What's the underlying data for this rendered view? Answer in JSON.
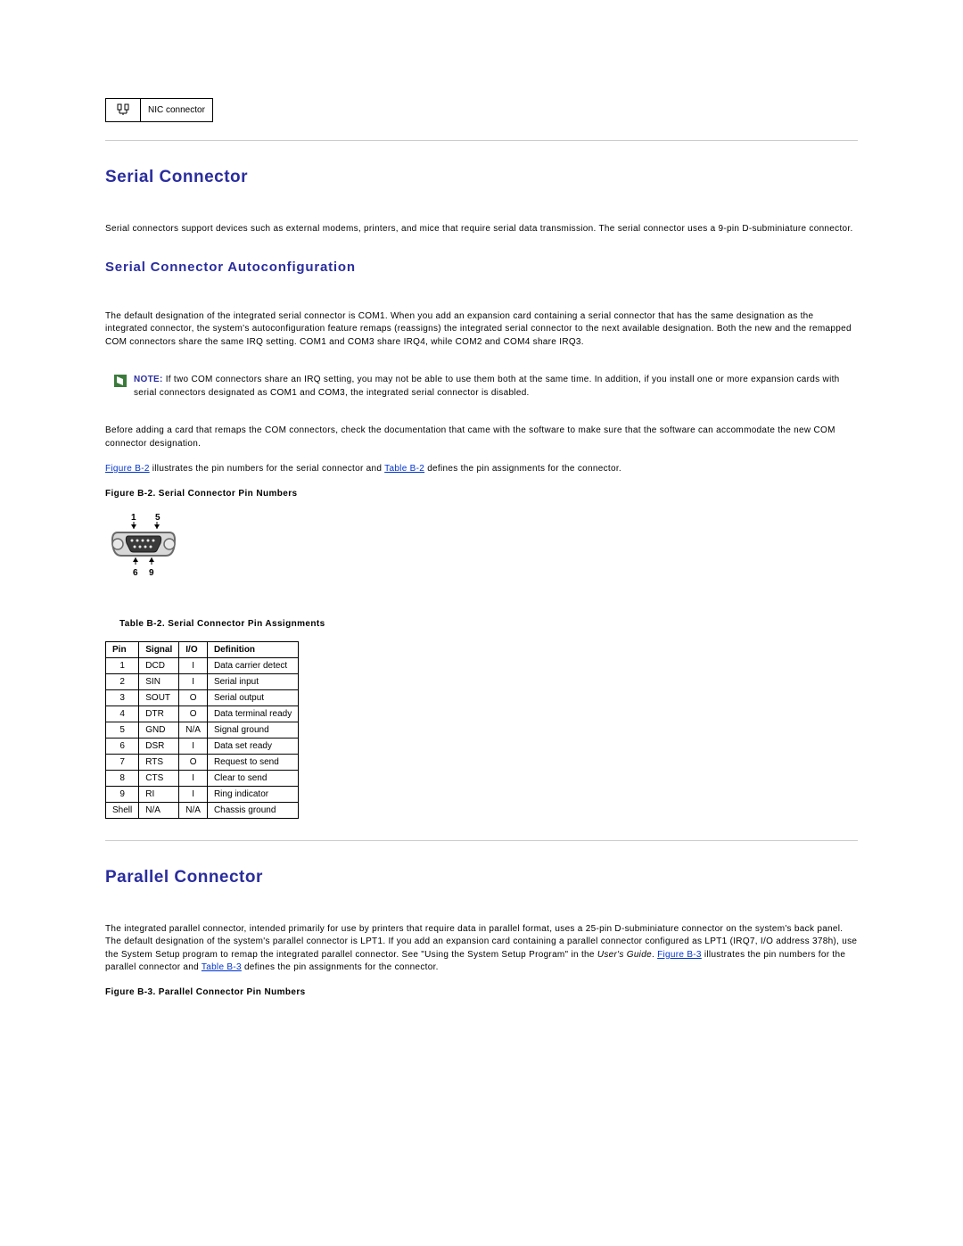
{
  "nic_row": {
    "label": "NIC connector"
  },
  "serial": {
    "title": "Serial Connector",
    "intro": "Serial connectors support devices such as external modems, printers, and mice that require serial data transmission. The serial connector uses a 9-pin D-subminiature connector.",
    "autoconf_title": "Serial Connector Autoconfiguration",
    "autoconf_body": "The default designation of the integrated serial connector is COM1. When you add an expansion card containing a serial connector that has the same designation as the integrated connector, the system's autoconfiguration feature remaps (reassigns) the integrated serial connector to the next available designation. Both the new and the remapped COM connectors share the same IRQ setting. COM1 and COM3 share IRQ4, while COM2 and COM4 share IRQ3.",
    "note_label": "NOTE:",
    "note_body": " If two COM connectors share an IRQ setting, you may not be able to use them both at the same time. In addition, if you install one or more expansion cards with serial connectors designated as COM1 and COM3, the integrated serial connector is disabled.",
    "pre_add_body": "Before adding a card that remaps the COM connectors, check the documentation that came with the software to make sure that the software can accommodate the new COM connector designation.",
    "ref_sentence": {
      "link1": "Figure B-2",
      "mid1": " illustrates the pin numbers for the serial connector and ",
      "link2": "Table B-2",
      "mid2": " defines the pin assignments for the connector."
    },
    "fig_caption": "Figure B-2. Serial Connector Pin Numbers",
    "fig_labels": {
      "tl": "1",
      "tr": "5",
      "bl": "6",
      "br": "9"
    },
    "table_caption": "Table B-2. Serial Connector Pin Assignments",
    "table": {
      "headers": [
        "Pin",
        "Signal",
        "I/O",
        "Definition"
      ],
      "rows": [
        [
          "1",
          "DCD",
          "I",
          "Data carrier detect"
        ],
        [
          "2",
          "SIN",
          "I",
          "Serial input"
        ],
        [
          "3",
          "SOUT",
          "O",
          "Serial output"
        ],
        [
          "4",
          "DTR",
          "O",
          "Data terminal ready"
        ],
        [
          "5",
          "GND",
          "N/A",
          "Signal ground"
        ],
        [
          "6",
          "DSR",
          "I",
          "Data set ready"
        ],
        [
          "7",
          "RTS",
          "O",
          "Request to send"
        ],
        [
          "8",
          "CTS",
          "I",
          "Clear to send"
        ],
        [
          "9",
          "RI",
          "I",
          "Ring indicator"
        ],
        [
          "Shell",
          "N/A",
          "N/A",
          "Chassis ground"
        ]
      ]
    }
  },
  "parallel": {
    "title": "Parallel Connector",
    "body_pre": "The integrated parallel connector, intended primarily for use by printers that require data in parallel format, uses a 25-pin D-subminiature connector on the system's back panel. The default designation of the system's parallel connector is LPT1. If you add an expansion card containing a parallel connector configured as LPT1 (IRQ7, I/O address 378h), use the System Setup program to remap the integrated parallel connector. See \"Using the System Setup Program\" in the ",
    "users_guide": "User's Guide",
    "body_post1": ". ",
    "link1": "Figure B-3",
    "body_post2": " illustrates the pin numbers for the parallel connector and ",
    "link2": "Table B-3",
    "body_post3": " defines the pin assignments for the connector.",
    "fig_caption": "Figure B-3. Parallel Connector Pin Numbers"
  },
  "colors": {
    "heading": "#2a2d9e",
    "link": "#0033cc",
    "rule": "#cccccc",
    "text": "#000000",
    "connector_body": "#d8d8d8",
    "connector_stroke": "#6a6a6a"
  }
}
